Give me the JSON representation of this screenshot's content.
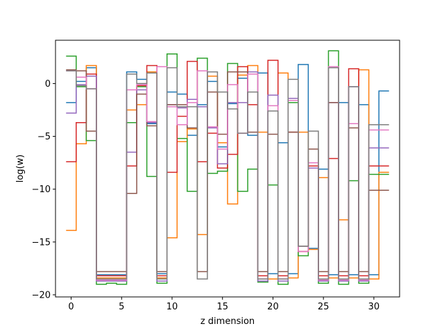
{
  "chart_data": {
    "type": "line",
    "title": "",
    "xlabel": "z dimension",
    "ylabel": "log(w)",
    "xlim": [
      -1.55,
      32.55
    ],
    "ylim": [
      -20.2,
      4.1
    ],
    "xticks": [
      0,
      5,
      10,
      15,
      20,
      25,
      30
    ],
    "yticks": [
      -20,
      -15,
      -10,
      -5,
      0
    ],
    "grid": false,
    "legend": "none",
    "x": [
      0,
      1,
      2,
      3,
      4,
      5,
      6,
      7,
      8,
      9,
      10,
      11,
      12,
      13,
      14,
      15,
      16,
      17,
      18,
      19,
      20,
      21,
      22,
      23,
      24,
      25,
      26,
      27,
      28,
      29,
      30,
      31
    ],
    "series": [
      {
        "color": "#1f77b4",
        "values": [
          -1.8,
          0.2,
          1.5,
          -18.1,
          -18.1,
          -18.1,
          1.1,
          0.4,
          -3.8,
          -18.0,
          -0.8,
          -1.0,
          -4.9,
          -2.0,
          0.2,
          -6.0,
          -1.9,
          0.5,
          -4.9,
          1.0,
          -18.0,
          -5.6,
          -18.0,
          1.8,
          -15.6,
          -8.1,
          -18.1,
          -1.8,
          -18.1,
          -2.0,
          -18.1,
          -0.7
        ]
      },
      {
        "color": "#ff7f0e",
        "values": [
          -13.9,
          -5.7,
          1.7,
          -18.4,
          -18.4,
          -18.4,
          -2.5,
          -2.0,
          1.1,
          -18.4,
          -14.6,
          -5.5,
          -4.3,
          -14.3,
          0.7,
          -5.6,
          -11.4,
          0.8,
          1.7,
          -4.6,
          -18.5,
          1.0,
          -18.4,
          -4.6,
          -15.7,
          -8.9,
          -18.4,
          -12.9,
          -18.4,
          1.3,
          -18.5,
          -8.4
        ]
      },
      {
        "color": "#2ca02c",
        "values": [
          2.6,
          -0.3,
          -5.4,
          -19.0,
          -18.9,
          -19.0,
          -3.7,
          -0.3,
          -8.8,
          -18.9,
          2.8,
          -5.2,
          -10.2,
          2.4,
          -8.5,
          -8.3,
          1.9,
          -10.2,
          -8.1,
          -18.8,
          -9.6,
          -19.0,
          -1.8,
          -16.3,
          -7.8,
          -18.9,
          3.1,
          -19.0,
          -9.2,
          -18.9,
          -8.6,
          -8.6
        ]
      },
      {
        "color": "#d62728",
        "values": [
          -7.4,
          -3.7,
          0.9,
          -18.2,
          -18.2,
          -18.2,
          -7.8,
          -0.2,
          1.7,
          -18.2,
          -8.4,
          -3.1,
          2.1,
          -7.4,
          -4.7,
          -8.0,
          -6.7,
          1.6,
          -2.0,
          -18.2,
          2.2,
          -18.2,
          -4.6,
          -15.9,
          -7.8,
          -18.2,
          -7.1,
          -18.2,
          1.4,
          -18.2,
          -7.8,
          -7.8
        ]
      },
      {
        "color": "#9467bd",
        "values": [
          -2.8,
          -0.1,
          0.7,
          -18.7,
          -18.7,
          -18.7,
          -6.5,
          -0.6,
          -3.7,
          -18.7,
          -2.0,
          -2.3,
          -1.5,
          -2.2,
          -4.2,
          -7.6,
          -1.8,
          -1.8,
          1.1,
          -18.7,
          -1.1,
          -18.7,
          -1.4,
          -15.4,
          -8.0,
          -18.7,
          -1.8,
          -18.7,
          -0.3,
          -18.7,
          -6.1,
          -6.1
        ]
      },
      {
        "color": "#8c564b",
        "values": [
          1.3,
          1.2,
          -4.5,
          -17.8,
          -17.8,
          -17.8,
          -10.4,
          -1.0,
          -4.0,
          -17.8,
          -2.0,
          -2.0,
          -4.2,
          -17.8,
          -0.8,
          -4.8,
          1.1,
          1.1,
          -4.6,
          -17.8,
          -4.8,
          -17.8,
          -4.6,
          -15.4,
          -6.2,
          -17.8,
          -1.8,
          -17.8,
          -4.2,
          -17.8,
          -10.1,
          -10.1
        ]
      },
      {
        "color": "#e377c2",
        "values": [
          1.2,
          0.6,
          -0.5,
          -18.6,
          -18.6,
          -18.6,
          -0.6,
          -0.1,
          -3.6,
          1.6,
          -2.2,
          -3.9,
          -1.8,
          1.2,
          -4.1,
          -6.2,
          -0.1,
          -4.7,
          0.9,
          -18.5,
          -2.1,
          -18.5,
          -1.6,
          -15.9,
          -7.5,
          -18.6,
          1.6,
          -18.6,
          -3.8,
          -18.6,
          -4.4,
          -4.4
        ]
      },
      {
        "color": "#7f7f7f",
        "values": [
          1.2,
          -0.2,
          -0.5,
          -18.5,
          -18.5,
          -18.5,
          0.9,
          0.0,
          1.0,
          -18.5,
          1.5,
          -2.2,
          -2.2,
          -18.5,
          1.1,
          -0.8,
          -2.4,
          -4.7,
          -0.8,
          -18.5,
          -2.6,
          -18.5,
          0.4,
          -15.4,
          -4.5,
          -18.5,
          1.5,
          -18.5,
          -0.3,
          -18.5,
          -3.9,
          -3.9
        ]
      }
    ]
  }
}
